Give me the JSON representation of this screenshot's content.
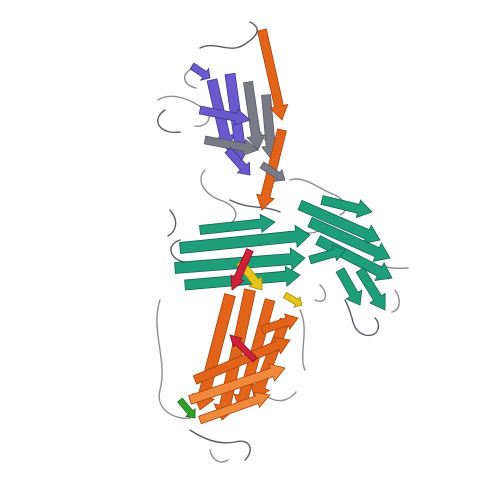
{
  "image": {
    "subject": "protein-ribbon-cartoon",
    "background": "#ffffff",
    "colors": {
      "coil": "#8c8c94",
      "coil_dark": "#5a5a66",
      "purple": "#6a5acd",
      "purple_dark": "#3f3a8a",
      "teal": "#1f9e7a",
      "teal_dark": "#12664f",
      "orange": "#e2641a",
      "orange_dark": "#a9440c",
      "light_orange": "#f08a3a",
      "yellow": "#e6c51a",
      "green": "#33a02c",
      "red": "#d0203c",
      "grey_strand": "#7a7a85"
    },
    "regions": [
      "top-domain",
      "middle-domain",
      "right-domain",
      "bottom-domain"
    ]
  }
}
